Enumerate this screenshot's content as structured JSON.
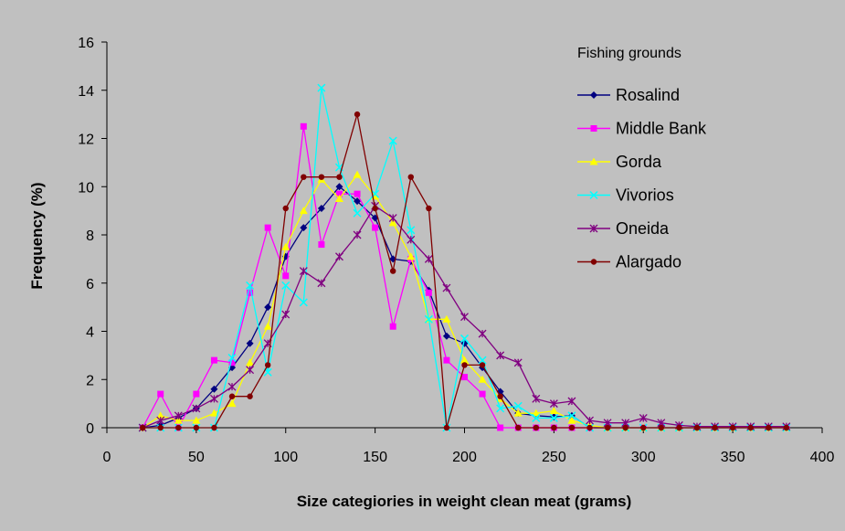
{
  "chart_data": {
    "type": "line",
    "title": "",
    "xlabel": "Size categiories in weight clean meat (grams)",
    "ylabel": "Frequency (%)",
    "xlim": [
      0,
      400
    ],
    "ylim": [
      0,
      16
    ],
    "x_ticks": [
      "0",
      "50",
      "100",
      "150",
      "200",
      "250",
      "300",
      "350",
      "400"
    ],
    "y_ticks": [
      "0",
      "2",
      "4",
      "6",
      "8",
      "10",
      "12",
      "14",
      "16"
    ],
    "grid": false,
    "legend_title": "Fishing grounds",
    "legend_position": "top-right",
    "x": [
      20,
      30,
      40,
      50,
      60,
      70,
      80,
      90,
      100,
      110,
      120,
      130,
      140,
      150,
      160,
      170,
      180,
      190,
      200,
      210,
      220,
      230,
      240,
      250,
      260,
      270,
      280,
      290,
      300,
      310,
      320,
      330,
      340,
      350,
      360,
      370,
      380
    ],
    "series": [
      {
        "name": "Rosalind",
        "color": "#000080",
        "marker": "diamond",
        "values": [
          0,
          0.1,
          0.4,
          0.8,
          1.6,
          2.5,
          3.5,
          5.0,
          7.1,
          8.3,
          9.1,
          10.0,
          9.4,
          8.7,
          7.0,
          6.9,
          5.7,
          3.8,
          3.5,
          2.5,
          1.5,
          0.6,
          0.5,
          0.45,
          0.5,
          0,
          0,
          0,
          0,
          0,
          0,
          0,
          0,
          0,
          0,
          0,
          0
        ]
      },
      {
        "name": "Middle Bank",
        "color": "#ff00ff",
        "marker": "square",
        "values": [
          0,
          1.4,
          0,
          1.4,
          2.8,
          2.7,
          5.6,
          8.3,
          6.3,
          12.5,
          7.6,
          9.7,
          9.7,
          8.3,
          4.2,
          7.0,
          5.6,
          2.8,
          2.1,
          1.4,
          0,
          0,
          0,
          0,
          0,
          0,
          0,
          0,
          0,
          0,
          0,
          0,
          0,
          0,
          0,
          0,
          0
        ]
      },
      {
        "name": "Gorda",
        "color": "#ffff00",
        "marker": "triangle",
        "values": [
          0,
          0.5,
          0.3,
          0.3,
          0.6,
          1.0,
          2.7,
          4.2,
          7.5,
          9.0,
          10.3,
          9.5,
          10.5,
          9.6,
          8.5,
          7.1,
          4.5,
          4.5,
          2.8,
          2.0,
          1.2,
          0.6,
          0.6,
          0.7,
          0.3,
          0.1,
          0,
          0,
          0,
          0,
          0,
          0,
          0,
          0,
          0,
          0,
          0
        ]
      },
      {
        "name": "Vivorios",
        "color": "#00ffff",
        "marker": "x",
        "values": [
          0,
          0,
          0,
          0,
          0,
          2.9,
          5.9,
          2.3,
          5.9,
          5.2,
          14.1,
          10.8,
          8.9,
          9.7,
          11.9,
          8.2,
          4.5,
          0,
          3.7,
          2.8,
          0.8,
          0.9,
          0.4,
          0.4,
          0.5,
          0,
          0,
          0,
          0,
          0,
          0,
          0,
          0,
          0,
          0,
          0,
          0
        ]
      },
      {
        "name": "Oneida",
        "color": "#800080",
        "marker": "star",
        "values": [
          0,
          0.3,
          0.5,
          0.8,
          1.2,
          1.7,
          2.4,
          3.5,
          4.7,
          6.5,
          6.0,
          7.1,
          8.0,
          9.2,
          8.7,
          7.8,
          7.0,
          5.8,
          4.6,
          3.9,
          3.0,
          2.7,
          1.2,
          1.0,
          1.1,
          0.3,
          0.2,
          0.2,
          0.4,
          0.2,
          0.1,
          0.05,
          0.05,
          0.05,
          0.05,
          0.05,
          0.05
        ]
      },
      {
        "name": "Alargado",
        "color": "#800000",
        "marker": "circle",
        "values": [
          0,
          0,
          0,
          0,
          0,
          1.3,
          1.3,
          2.6,
          9.1,
          10.4,
          10.4,
          10.4,
          13.0,
          9.1,
          6.5,
          10.4,
          9.1,
          0,
          2.6,
          2.6,
          1.3,
          0,
          0,
          0,
          0,
          0,
          0,
          0,
          0,
          0,
          0,
          0,
          0,
          0,
          0,
          0,
          0
        ]
      }
    ]
  }
}
